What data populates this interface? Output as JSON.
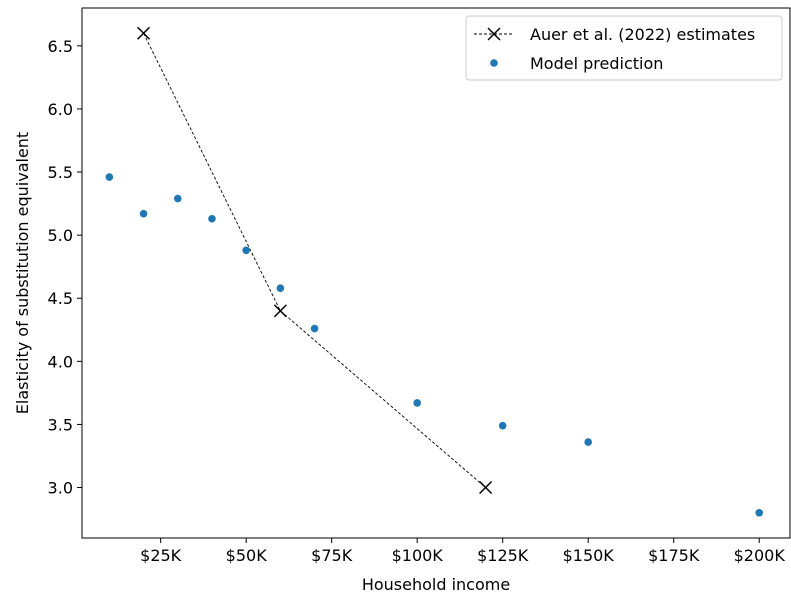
{
  "chart_data": {
    "type": "scatter",
    "title": "",
    "xlabel": "Household income",
    "ylabel": "Elasticity of substitution equivalent",
    "xlim": [
      2000,
      209000
    ],
    "ylim": [
      2.6,
      6.8
    ],
    "grid": false,
    "legend_position": "top-right",
    "x_ticks": [
      {
        "value": 25000,
        "label": "$25K"
      },
      {
        "value": 50000,
        "label": "$50K"
      },
      {
        "value": 75000,
        "label": "$75K"
      },
      {
        "value": 100000,
        "label": "$100K"
      },
      {
        "value": 125000,
        "label": "$125K"
      },
      {
        "value": 150000,
        "label": "$150K"
      },
      {
        "value": 175000,
        "label": "$175K"
      },
      {
        "value": 200000,
        "label": "$200K"
      }
    ],
    "y_ticks": [
      {
        "value": 3.0,
        "label": "3.0"
      },
      {
        "value": 3.5,
        "label": "3.5"
      },
      {
        "value": 4.0,
        "label": "4.0"
      },
      {
        "value": 4.5,
        "label": "4.5"
      },
      {
        "value": 5.0,
        "label": "5.0"
      },
      {
        "value": 5.5,
        "label": "5.5"
      },
      {
        "value": 6.0,
        "label": "6.0"
      },
      {
        "value": 6.5,
        "label": "6.5"
      }
    ],
    "series": [
      {
        "name": "Auer et al. (2022) estimates",
        "style": "dashed-line-x-markers",
        "color": "#000000",
        "points": [
          {
            "x": 20000,
            "y": 6.6
          },
          {
            "x": 60000,
            "y": 4.4
          },
          {
            "x": 120000,
            "y": 3.0
          }
        ]
      },
      {
        "name": "Model prediction",
        "style": "dots",
        "color": "#1f77b4",
        "points": [
          {
            "x": 10000,
            "y": 5.46
          },
          {
            "x": 20000,
            "y": 5.17
          },
          {
            "x": 30000,
            "y": 5.29
          },
          {
            "x": 40000,
            "y": 5.13
          },
          {
            "x": 50000,
            "y": 4.88
          },
          {
            "x": 60000,
            "y": 4.58
          },
          {
            "x": 70000,
            "y": 4.26
          },
          {
            "x": 100000,
            "y": 3.67
          },
          {
            "x": 125000,
            "y": 3.49
          },
          {
            "x": 150000,
            "y": 3.36
          },
          {
            "x": 200000,
            "y": 2.8
          }
        ]
      }
    ]
  }
}
